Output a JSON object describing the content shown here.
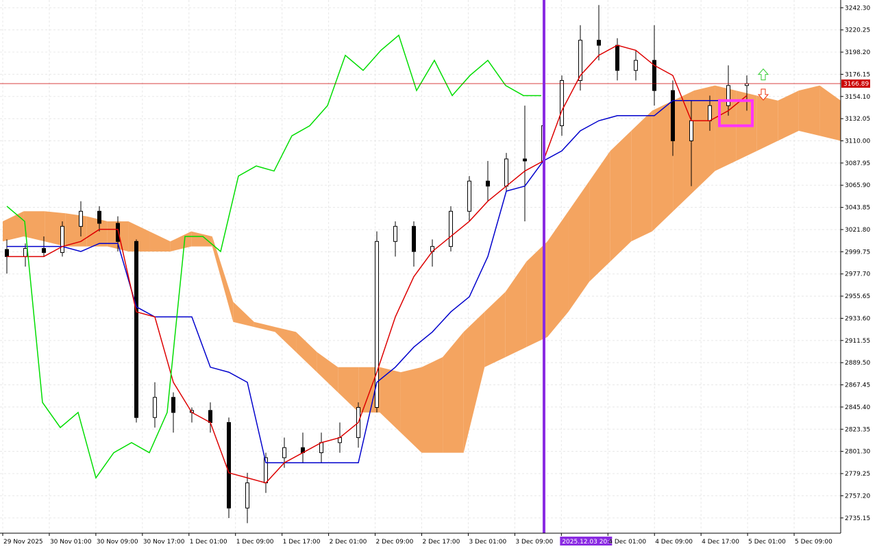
{
  "chart_data": {
    "type": "candlestick",
    "ylim": [
      2720.0,
      3250.0
    ],
    "y_ticks": [
      "3242.30",
      "3220.25",
      "3198.20",
      "3176.15",
      "3154.10",
      "3132.05",
      "3110.00",
      "3087.95",
      "3065.90",
      "3043.85",
      "3021.80",
      "2999.75",
      "2977.70",
      "2955.65",
      "2933.60",
      "2911.55",
      "2889.50",
      "2867.45",
      "2845.40",
      "2823.35",
      "2801.30",
      "2779.25",
      "2757.20",
      "2735.15"
    ],
    "x_ticks": [
      "29 Nov 2025",
      "30 Nov 01:00",
      "30 Nov 09:00",
      "30 Nov 17:00",
      "1 Dec 01:00",
      "1 Dec 09:00",
      "1 Dec 17:00",
      "2 Dec 01:00",
      "2 Dec 09:00",
      "2 Dec 17:00",
      "3 Dec 01:00",
      "3 Dec 09:00",
      "2025.12.03 20:00",
      "4 Dec 01:00",
      "4 Dec 09:00",
      "4 Dec 17:00",
      "5 Dec 01:00",
      "5 Dec 09:00"
    ],
    "current_price": "3166.89",
    "highlight_time": "2025.12.03 20:00",
    "candles": [
      [
        3002,
        3012,
        2978,
        2995
      ],
      [
        2995,
        3008,
        2985,
        3003
      ],
      [
        3003,
        3015,
        2995,
        2999
      ],
      [
        2999,
        3030,
        2995,
        3025
      ],
      [
        3025,
        3050,
        3015,
        3040
      ],
      [
        3040,
        3045,
        3020,
        3028
      ],
      [
        3028,
        3035,
        3000,
        3010
      ],
      [
        3010,
        3012,
        2830,
        2835
      ],
      [
        2835,
        2870,
        2825,
        2855
      ],
      [
        2855,
        2860,
        2820,
        2840
      ],
      [
        2840,
        2845,
        2830,
        2842
      ],
      [
        2842,
        2850,
        2820,
        2830
      ],
      [
        2830,
        2835,
        2735,
        2745
      ],
      [
        2745,
        2780,
        2730,
        2770
      ],
      [
        2770,
        2800,
        2760,
        2795
      ],
      [
        2795,
        2815,
        2785,
        2805
      ],
      [
        2805,
        2820,
        2790,
        2800
      ],
      [
        2800,
        2820,
        2790,
        2810
      ],
      [
        2810,
        2830,
        2800,
        2815
      ],
      [
        2815,
        2850,
        2805,
        2845
      ],
      [
        2845,
        3020,
        2840,
        3010
      ],
      [
        3010,
        3030,
        2995,
        3025
      ],
      [
        3025,
        3030,
        2985,
        3000
      ],
      [
        3000,
        3012,
        2985,
        3005
      ],
      [
        3005,
        3045,
        3000,
        3040
      ],
      [
        3040,
        3075,
        3030,
        3070
      ],
      [
        3070,
        3090,
        3050,
        3065
      ],
      [
        3065,
        3098,
        3060,
        3092
      ],
      [
        3092,
        3145,
        3030,
        3090
      ],
      [
        3090,
        3135,
        3080,
        3125
      ],
      [
        3125,
        3175,
        3115,
        3170
      ],
      [
        3170,
        3225,
        3160,
        3210
      ],
      [
        3210,
        3245,
        3190,
        3205
      ],
      [
        3205,
        3212,
        3170,
        3180
      ],
      [
        3180,
        3200,
        3170,
        3190
      ],
      [
        3190,
        3225,
        3145,
        3160
      ],
      [
        3160,
        3170,
        3095,
        3110
      ],
      [
        3110,
        3150,
        3065,
        3130
      ],
      [
        3130,
        3155,
        3120,
        3145
      ],
      [
        3145,
        3185,
        3135,
        3165
      ],
      [
        3165,
        3175,
        3140,
        3166.89
      ]
    ],
    "tenkan": [
      2995,
      2995,
      2995,
      3005,
      3010,
      3022,
      3022,
      2940,
      2935,
      2870,
      2840,
      2830,
      2780,
      2775,
      2770,
      2790,
      2800,
      2810,
      2815,
      2830,
      2880,
      2935,
      2975,
      3000,
      3015,
      3030,
      3050,
      3065,
      3080,
      3090,
      3140,
      3175,
      3195,
      3205,
      3200,
      3185,
      3175,
      3130,
      3130,
      3140,
      3155
    ],
    "kijun": [
      3005,
      3005,
      3005,
      3005,
      3000,
      3008,
      3008,
      2945,
      2935,
      2935,
      2935,
      2885,
      2880,
      2870,
      2790,
      2790,
      2790,
      2790,
      2790,
      2790,
      2870,
      2885,
      2905,
      2920,
      2940,
      2955,
      2995,
      3060,
      3065,
      3090,
      3100,
      3120,
      3130,
      3135,
      3135,
      3135,
      3150,
      3150,
      3150,
      3150,
      3150
    ],
    "chikou": [
      3045,
      3030,
      2850,
      2825,
      2840,
      2775,
      2800,
      2810,
      2800,
      2840,
      3015,
      3015,
      3000,
      3075,
      3085,
      3080,
      3115,
      3125,
      3145,
      3195,
      3180,
      3200,
      3215,
      3160,
      3190,
      3155,
      3175,
      3190,
      3165,
      3155,
      3155
    ],
    "cloud_span_a": [
      3030,
      3040,
      3040,
      3038,
      3035,
      3030,
      3030,
      3020,
      3010,
      3020,
      3015,
      2950,
      2930,
      2925,
      2920,
      2900,
      2885,
      2885,
      2885,
      2880,
      2885,
      2895,
      2920,
      2940,
      2960,
      2990,
      3010,
      3040,
      3070,
      3100,
      3120,
      3140,
      3150,
      3160,
      3165,
      3160,
      3155,
      3150,
      3160,
      3165,
      3150
    ],
    "cloud_span_b": [
      3010,
      3015,
      3010,
      3005,
      3005,
      3005,
      3000,
      3000,
      3000,
      3005,
      3005,
      2930,
      2925,
      2920,
      2900,
      2880,
      2860,
      2840,
      2840,
      2820,
      2800,
      2800,
      2800,
      2885,
      2895,
      2905,
      2915,
      2940,
      2970,
      2990,
      3010,
      3020,
      3040,
      3060,
      3080,
      3090,
      3100,
      3110,
      3120,
      3115,
      3110
    ]
  }
}
